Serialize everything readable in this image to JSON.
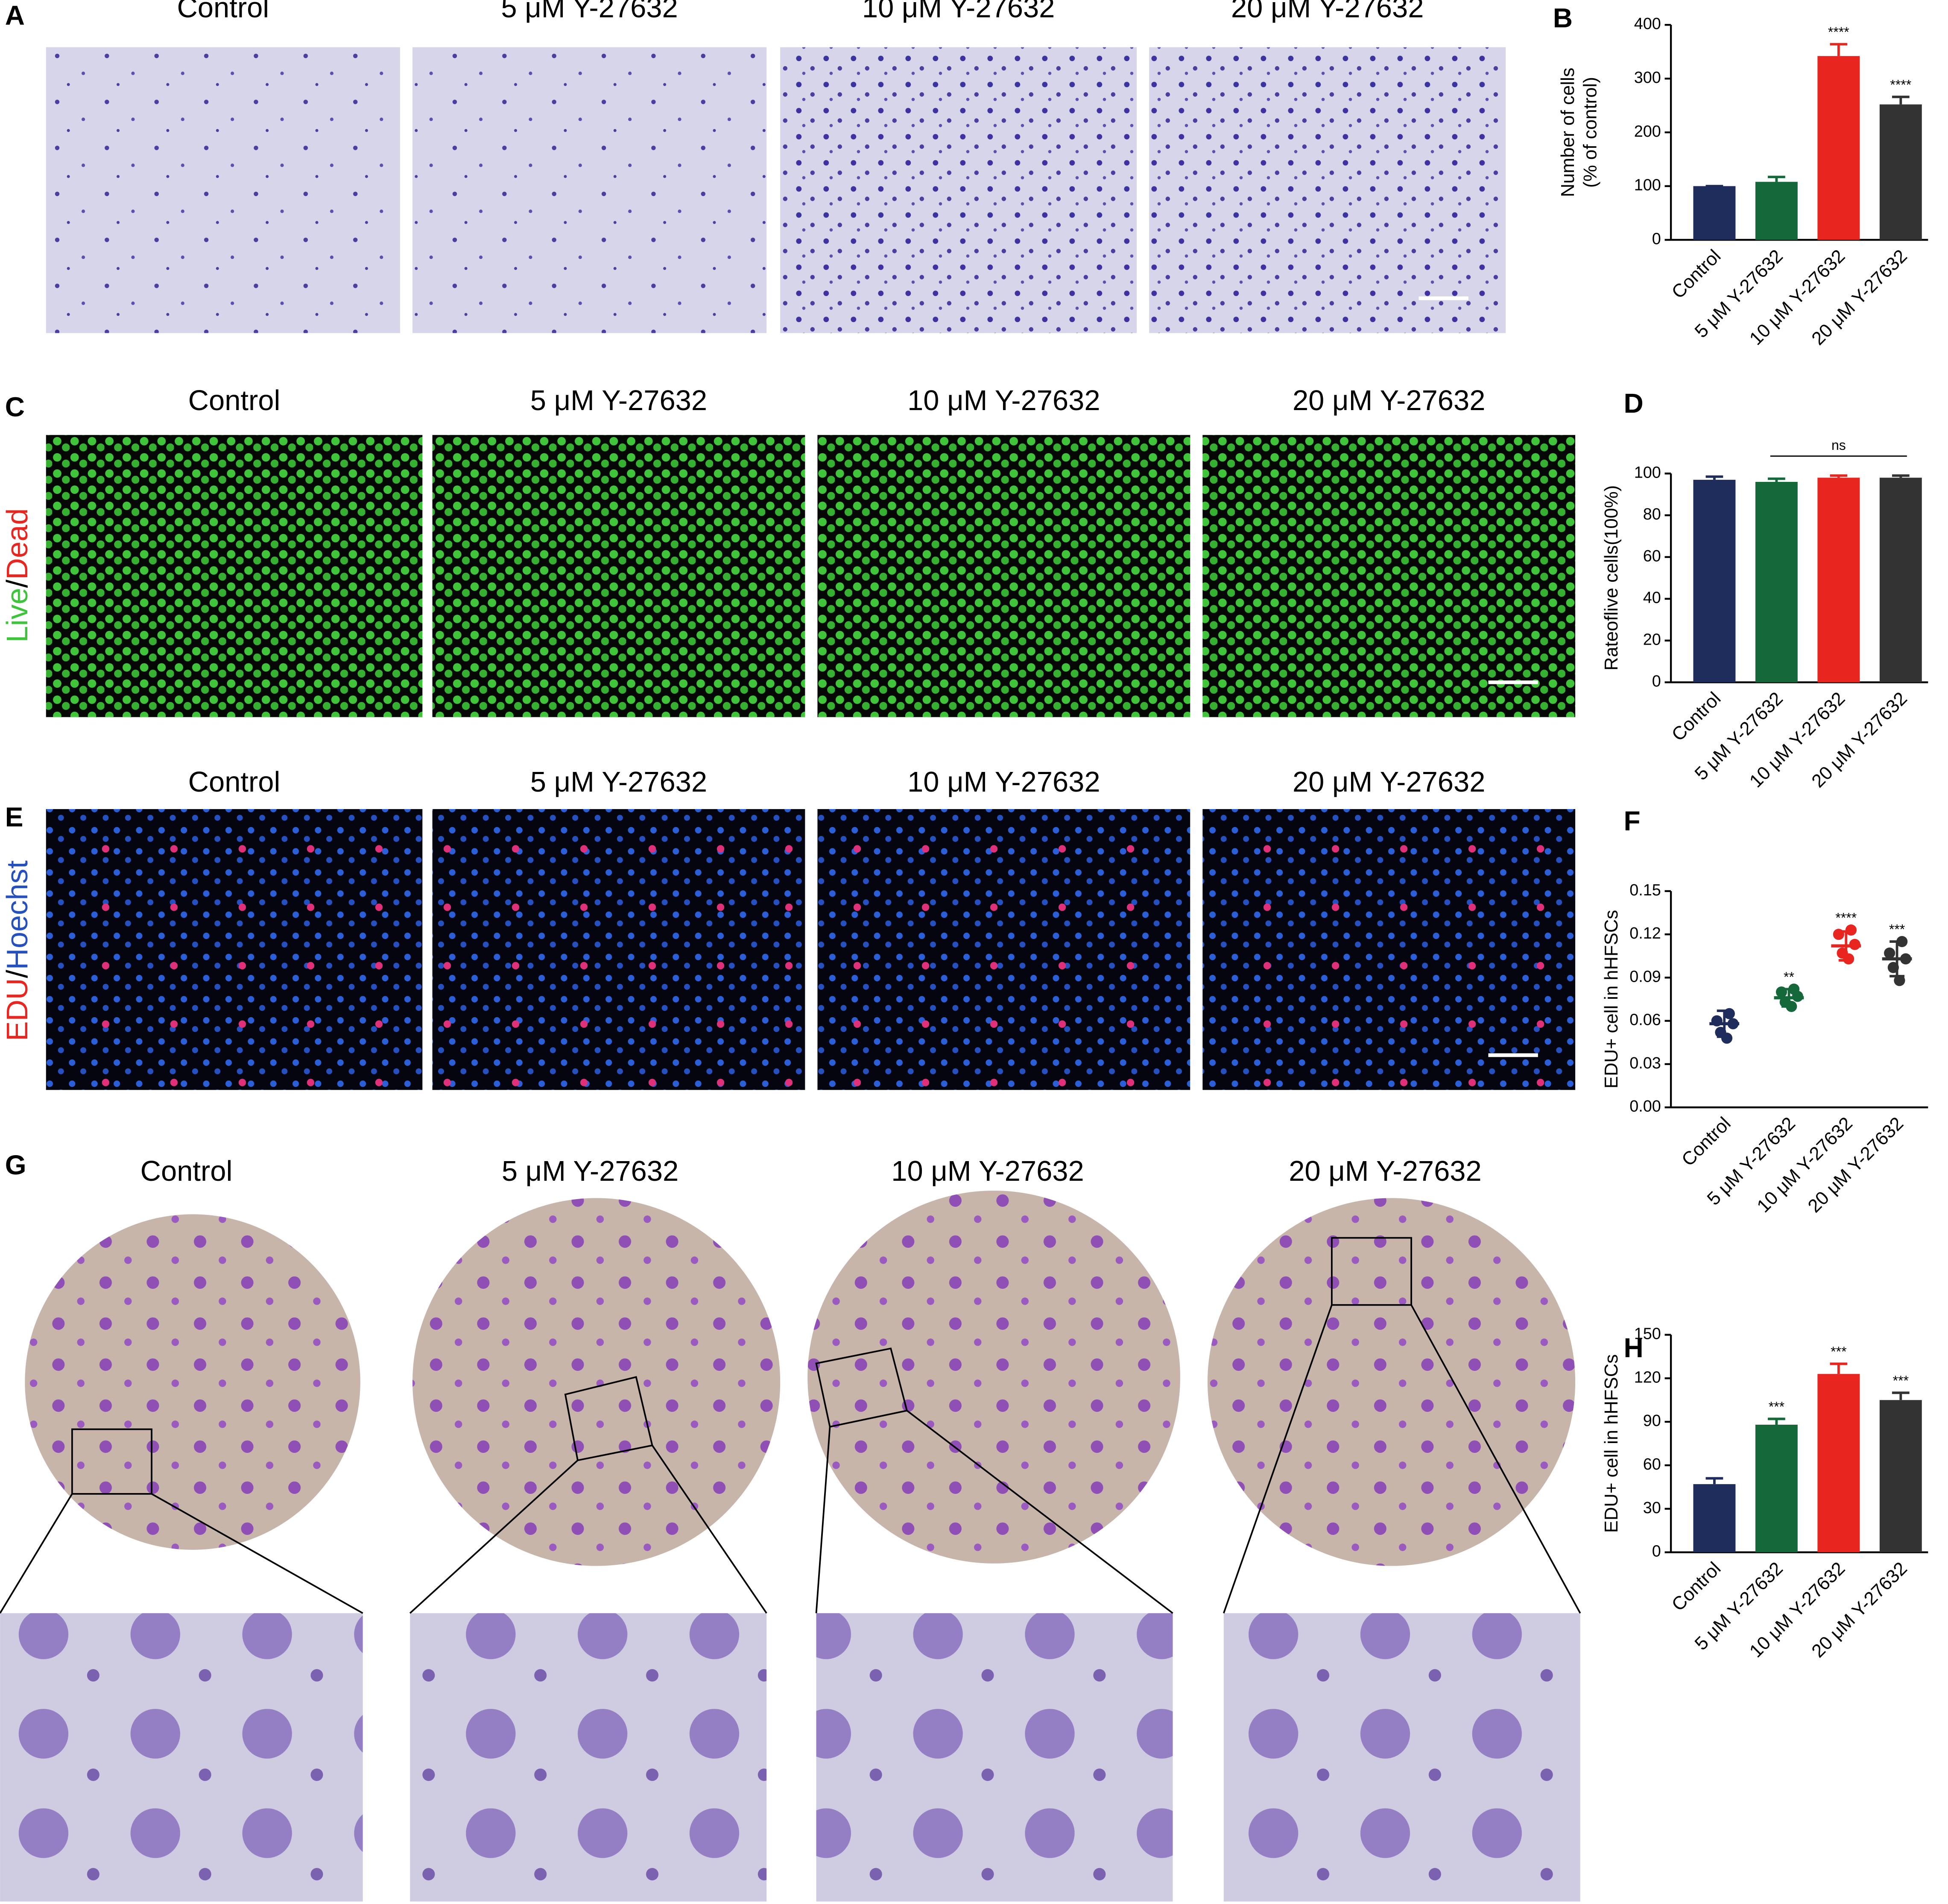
{
  "rows": [
    {
      "panel": "A",
      "titles": [
        "Control",
        "5 μM Y-27632",
        "10 μM Y-27632",
        "20 μM Y-27632"
      ]
    },
    {
      "panel": "C",
      "titles": [
        "Control",
        "5 μM Y-27632",
        "10 μM Y-27632",
        "20 μM Y-27632"
      ],
      "side_label": [
        "Live",
        "/",
        "Dead"
      ]
    },
    {
      "panel": "E",
      "titles": [
        "Control",
        "5 μM Y-27632",
        "10 μM Y-27632",
        "20 μM Y-27632"
      ],
      "side_label": [
        "EDU",
        "/",
        "Hoechst"
      ]
    },
    {
      "panel": "G",
      "titles": [
        "Control",
        "5 μM Y-27632",
        "10 μM Y-27632",
        "20 μM Y-27632"
      ]
    }
  ],
  "chart_data": [
    {
      "panel": "B",
      "type": "bar",
      "ylabel": [
        "Number of cells",
        "(% of control)"
      ],
      "categories": [
        "Control",
        "5 μM Y-27632",
        "10 μM Y-27632",
        "20 μM Y-27632"
      ],
      "values": [
        100,
        108,
        342,
        252
      ],
      "errors": [
        0,
        9,
        22,
        14
      ],
      "colors": [
        "#1f2d5c",
        "#15683a",
        "#e8261f",
        "#333333"
      ],
      "annotations": [
        null,
        null,
        "****",
        "****"
      ],
      "ylim": [
        0,
        400
      ],
      "yticks": [
        0,
        100,
        200,
        300,
        400
      ]
    },
    {
      "panel": "D",
      "type": "bar",
      "ylabel": [
        "Rateoflive cells(100%)"
      ],
      "categories": [
        "Control",
        "5 μM Y-27632",
        "10 μM Y-27632",
        "20 μM Y-27632"
      ],
      "values": [
        97,
        96,
        98,
        98
      ],
      "errors": [
        1.5,
        1.5,
        1,
        1
      ],
      "colors": [
        "#1f2d5c",
        "#15683a",
        "#e8261f",
        "#333333"
      ],
      "bracket": {
        "label": "ns",
        "categories": [
          "5 μM Y-27632",
          "20 μM Y-27632"
        ]
      },
      "ylim": [
        0,
        100
      ],
      "yticks": [
        0,
        20,
        40,
        60,
        80,
        100
      ]
    },
    {
      "panel": "F",
      "type": "scatter",
      "ylabel": [
        "EDU+ cell in hHFSCs"
      ],
      "categories": [
        "Control",
        "5 μM Y-27632",
        "10 μM Y-27632",
        "20 μM Y-27632"
      ],
      "points": [
        [
          0.065,
          0.06,
          0.058,
          0.052,
          0.048
        ],
        [
          0.082,
          0.08,
          0.077,
          0.073,
          0.07
        ],
        [
          0.123,
          0.12,
          0.113,
          0.107,
          0.103
        ],
        [
          0.115,
          0.107,
          0.103,
          0.097,
          0.088
        ]
      ],
      "values": [
        0.058,
        0.076,
        0.112,
        0.103
      ],
      "errors": [
        0.009,
        0.006,
        0.01,
        0.012
      ],
      "colors": [
        "#1f2d5c",
        "#15683a",
        "#e8261f",
        "#333333"
      ],
      "annotations": [
        null,
        "**",
        "****",
        "***"
      ],
      "ylim": [
        0,
        0.15
      ],
      "yticks": [
        {
          "value": 0,
          "label": "0.00"
        },
        0.03,
        0.06,
        0.09,
        0.12,
        0.15
      ]
    },
    {
      "panel": "H",
      "type": "bar",
      "ylabel": [
        "EDU+ cell in hHFSCs"
      ],
      "categories": [
        "Control",
        "5 μM Y-27632",
        "10 μM Y-27632",
        "20 μM Y-27632"
      ],
      "values": [
        47,
        88,
        123,
        105
      ],
      "errors": [
        4,
        4,
        7,
        5
      ],
      "colors": [
        "#1f2d5c",
        "#15683a",
        "#e8261f",
        "#333333"
      ],
      "annotations": [
        null,
        "***",
        "***",
        "***"
      ],
      "ylim": [
        0,
        150
      ],
      "yticks": [
        0,
        30,
        60,
        90,
        120,
        150
      ]
    }
  ]
}
